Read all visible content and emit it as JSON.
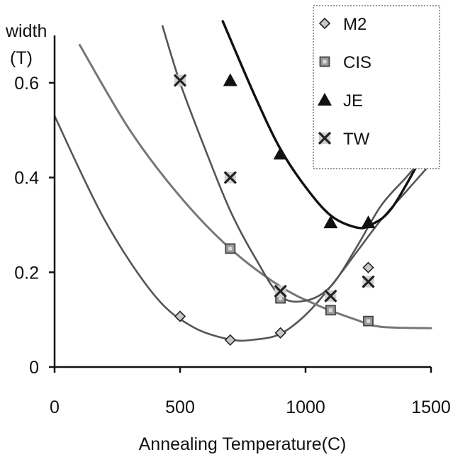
{
  "chart_data": {
    "type": "scatter",
    "title": "",
    "xlabel": "Annealing Temperature(C)",
    "ylabel_lines": [
      "width",
      "(T)"
    ],
    "xlim": [
      0,
      1500
    ],
    "ylim": [
      0,
      0.7
    ],
    "x_ticks": [
      0,
      500,
      1000,
      1500
    ],
    "x_tick_labels": [
      "0",
      "500",
      "1000",
      "1500"
    ],
    "y_ticks": [
      0,
      0.2,
      0.4,
      0.6
    ],
    "y_tick_labels": [
      "0",
      "0.2",
      "0.4",
      "0.6"
    ],
    "grid": false,
    "legend_position": "top-right",
    "series": [
      {
        "name": "M2",
        "marker": "diamond",
        "color": "#555555",
        "points": [
          [
            500,
            0.107
          ],
          [
            700,
            0.057
          ],
          [
            900,
            0.072
          ],
          [
            1250,
            0.21
          ]
        ],
        "fit": [
          [
            0,
            0.53
          ],
          [
            200,
            0.31
          ],
          [
            400,
            0.15
          ],
          [
            550,
            0.085
          ],
          [
            700,
            0.058
          ],
          [
            800,
            0.058
          ],
          [
            900,
            0.07
          ],
          [
            1000,
            0.11
          ],
          [
            1100,
            0.17
          ],
          [
            1200,
            0.24
          ],
          [
            1300,
            0.31
          ],
          [
            1400,
            0.37
          ],
          [
            1500,
            0.43
          ]
        ]
      },
      {
        "name": "CIS",
        "marker": "square",
        "color": "#777777",
        "points": [
          [
            700,
            0.25
          ],
          [
            900,
            0.145
          ],
          [
            1100,
            0.12
          ],
          [
            1250,
            0.097
          ]
        ],
        "fit": [
          [
            100,
            0.68
          ],
          [
            300,
            0.5
          ],
          [
            500,
            0.36
          ],
          [
            700,
            0.25
          ],
          [
            900,
            0.17
          ],
          [
            1050,
            0.13
          ],
          [
            1200,
            0.1
          ],
          [
            1300,
            0.085
          ],
          [
            1500,
            0.082
          ]
        ]
      },
      {
        "name": "JE",
        "marker": "triangle",
        "color": "#111111",
        "points": [
          [
            700,
            0.605
          ],
          [
            900,
            0.45
          ],
          [
            1100,
            0.305
          ],
          [
            1250,
            0.305
          ]
        ],
        "fit": [
          [
            670,
            0.73
          ],
          [
            800,
            0.57
          ],
          [
            900,
            0.46
          ],
          [
            1000,
            0.38
          ],
          [
            1100,
            0.32
          ],
          [
            1200,
            0.295
          ],
          [
            1260,
            0.3
          ],
          [
            1350,
            0.34
          ],
          [
            1500,
            0.48
          ]
        ]
      },
      {
        "name": "TW",
        "marker": "x",
        "color": "#555555",
        "points": [
          [
            500,
            0.605
          ],
          [
            700,
            0.4
          ],
          [
            900,
            0.16
          ],
          [
            1100,
            0.15
          ],
          [
            1250,
            0.18
          ]
        ],
        "fit": [
          [
            430,
            0.72
          ],
          [
            500,
            0.6
          ],
          [
            600,
            0.46
          ],
          [
            700,
            0.33
          ],
          [
            800,
            0.23
          ],
          [
            900,
            0.15
          ],
          [
            1000,
            0.14
          ],
          [
            1100,
            0.17
          ],
          [
            1200,
            0.25
          ],
          [
            1300,
            0.34
          ],
          [
            1400,
            0.4
          ],
          [
            1500,
            0.46
          ]
        ]
      }
    ]
  }
}
